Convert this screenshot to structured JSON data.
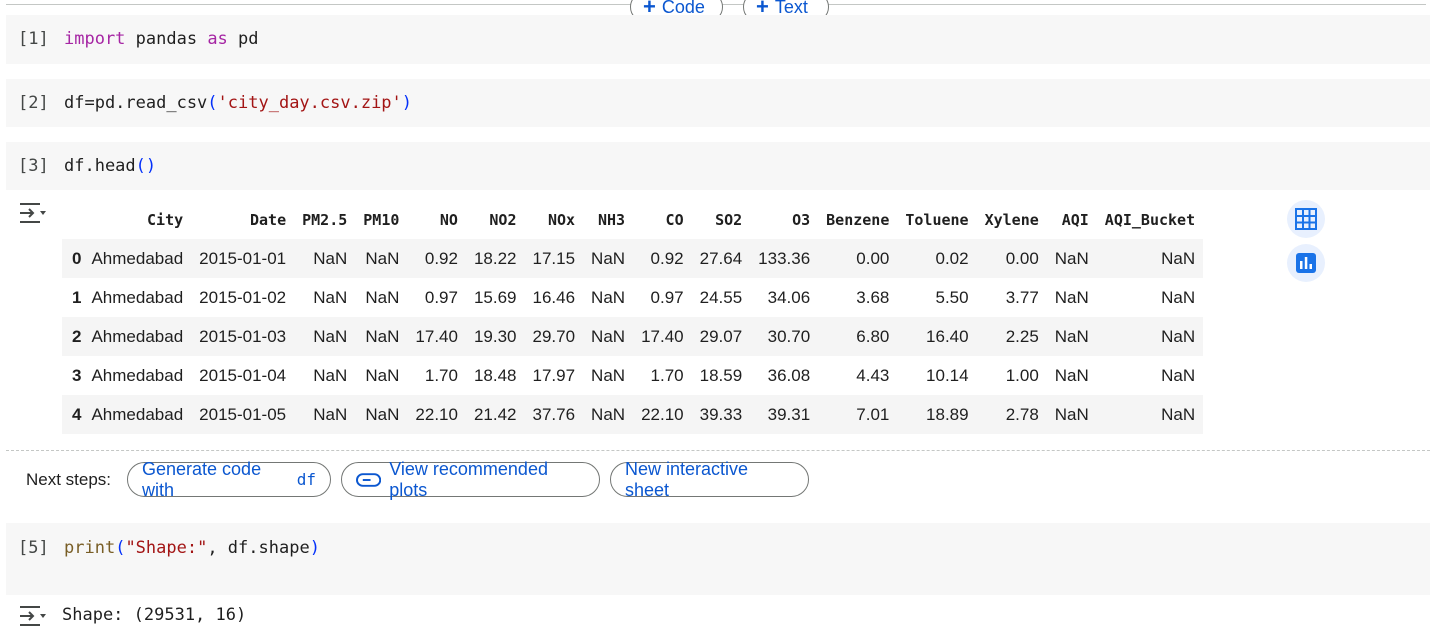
{
  "toolbar": {
    "add_code_label": "Code",
    "add_text_label": "Text"
  },
  "cells": [
    {
      "exec": "[1]",
      "code_kw": "import",
      "code_mid": " pandas ",
      "code_kw2": "as",
      "code_end": " pd"
    },
    {
      "exec": "[2]",
      "code_pre": "df=pd.read_csv",
      "code_str": "'city_day.csv.zip'"
    },
    {
      "exec": "[3]",
      "code_pre": "df.head"
    },
    {
      "exec": "[5]",
      "code_fn": "print",
      "code_str": "\"Shape:\"",
      "code_rest": ", df.shape"
    }
  ],
  "dataframe": {
    "columns": [
      "City",
      "Date",
      "PM2.5",
      "PM10",
      "NO",
      "NO2",
      "NOx",
      "NH3",
      "CO",
      "SO2",
      "O3",
      "Benzene",
      "Toluene",
      "Xylene",
      "AQI",
      "AQI_Bucket"
    ],
    "rows": [
      [
        "0",
        "Ahmedabad",
        "2015-01-01",
        "NaN",
        "NaN",
        "0.92",
        "18.22",
        "17.15",
        "NaN",
        "0.92",
        "27.64",
        "133.36",
        "0.00",
        "0.02",
        "0.00",
        "NaN",
        "NaN"
      ],
      [
        "1",
        "Ahmedabad",
        "2015-01-02",
        "NaN",
        "NaN",
        "0.97",
        "15.69",
        "16.46",
        "NaN",
        "0.97",
        "24.55",
        "34.06",
        "3.68",
        "5.50",
        "3.77",
        "NaN",
        "NaN"
      ],
      [
        "2",
        "Ahmedabad",
        "2015-01-03",
        "NaN",
        "NaN",
        "17.40",
        "19.30",
        "29.70",
        "NaN",
        "17.40",
        "29.07",
        "30.70",
        "6.80",
        "16.40",
        "2.25",
        "NaN",
        "NaN"
      ],
      [
        "3",
        "Ahmedabad",
        "2015-01-04",
        "NaN",
        "NaN",
        "1.70",
        "18.48",
        "17.97",
        "NaN",
        "1.70",
        "18.59",
        "36.08",
        "4.43",
        "10.14",
        "1.00",
        "NaN",
        "NaN"
      ],
      [
        "4",
        "Ahmedabad",
        "2015-01-05",
        "NaN",
        "NaN",
        "22.10",
        "21.42",
        "37.76",
        "NaN",
        "22.10",
        "39.33",
        "39.31",
        "7.01",
        "18.89",
        "2.78",
        "NaN",
        "NaN"
      ]
    ]
  },
  "next_steps": {
    "label": "Next steps:",
    "generate_label": "Generate code with",
    "generate_var": "df",
    "plots_label": "View recommended plots",
    "sheet_label": "New interactive sheet"
  },
  "shape_output": "Shape: (29531, 16)",
  "colors": {
    "accent": "#0b57d0",
    "cell_bg": "#f7f7f7",
    "keyword": "#a626a4",
    "string": "#a31515"
  },
  "icons": [
    "plus-icon",
    "output-toggle-icon",
    "table-icon",
    "bar-chart-icon",
    "toggle-icon"
  ]
}
